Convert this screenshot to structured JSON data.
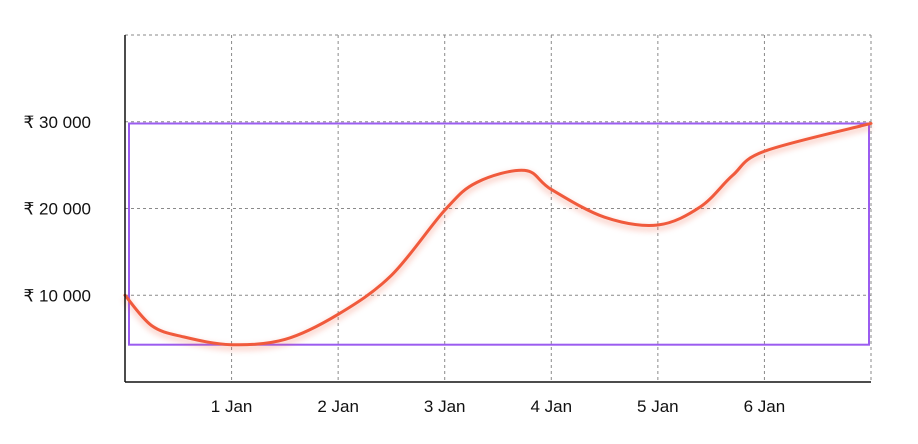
{
  "chart_data": {
    "type": "line",
    "x_categories": [
      "1 Jan",
      "2 Jan",
      "3 Jan",
      "4 Jan",
      "5 Jan",
      "6 Jan"
    ],
    "x_domain": [
      0,
      7
    ],
    "x_category_positions": [
      1,
      2,
      3,
      4,
      5,
      6
    ],
    "y_ticks": [
      10000,
      20000,
      30000
    ],
    "y_tick_labels": [
      "₹ 10 000",
      "₹ 20 000",
      "₹ 30 000"
    ],
    "ylim": [
      0,
      40000
    ],
    "grid": true,
    "series": [
      {
        "color": "#f05a3c",
        "points": [
          [
            0.0,
            10000
          ],
          [
            0.25,
            6500
          ],
          [
            0.55,
            5200
          ],
          [
            1.0,
            4300
          ],
          [
            1.5,
            4900
          ],
          [
            2.0,
            7800
          ],
          [
            2.5,
            12300
          ],
          [
            3.0,
            19800
          ],
          [
            3.3,
            23000
          ],
          [
            3.75,
            24400
          ],
          [
            4.0,
            22200
          ],
          [
            4.5,
            19000
          ],
          [
            5.0,
            18100
          ],
          [
            5.4,
            20200
          ],
          [
            5.7,
            23800
          ],
          [
            6.0,
            26600
          ],
          [
            7.0,
            29800
          ]
        ]
      }
    ],
    "highlight_range": {
      "x": [
        0,
        7
      ],
      "y": [
        4300,
        29800
      ],
      "color": "#9b5cf0"
    }
  }
}
